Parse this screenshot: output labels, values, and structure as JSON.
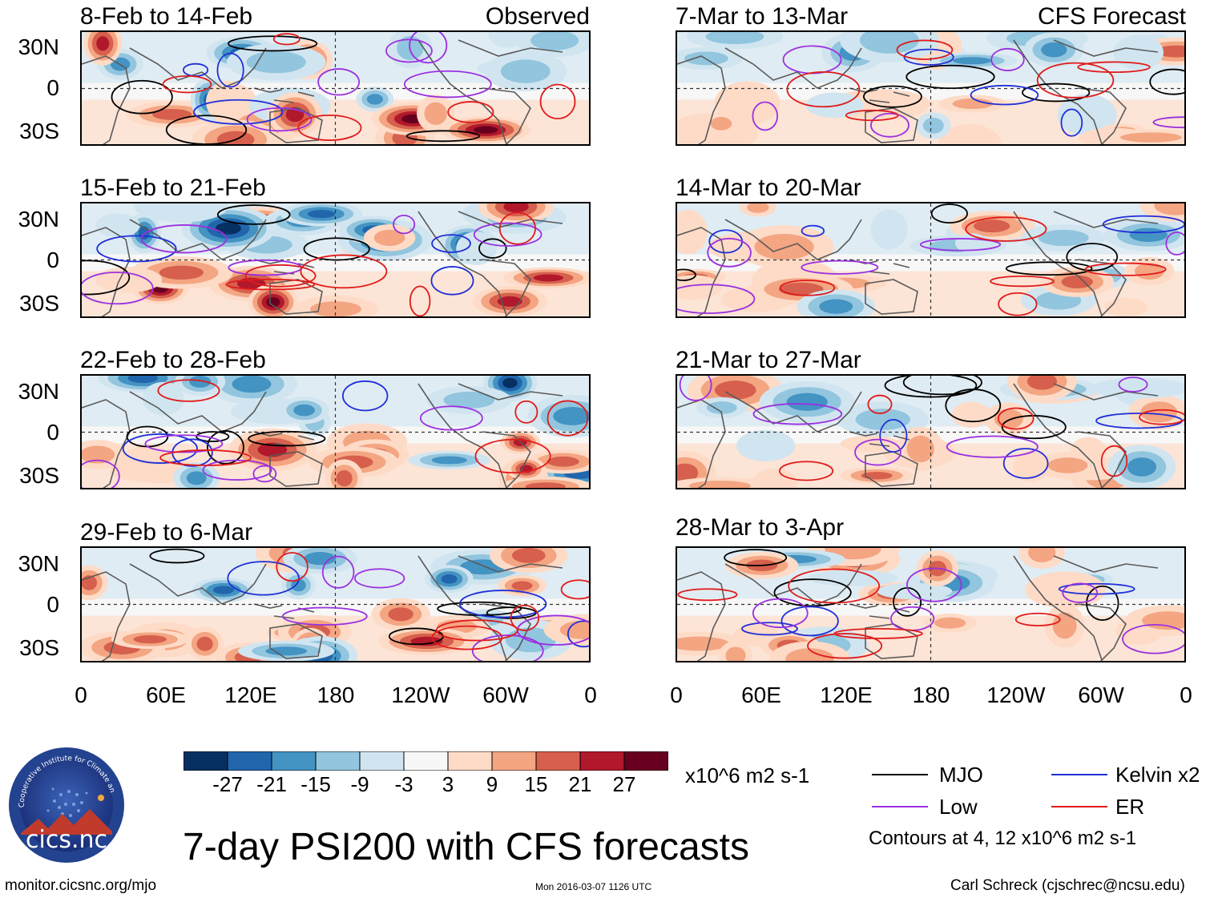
{
  "colors": {
    "scale": [
      "#053061",
      "#2166ac",
      "#4393c3",
      "#92c5de",
      "#d1e5f0",
      "#f7f7f7",
      "#fddbc7",
      "#f4a582",
      "#d6604d",
      "#b2182b",
      "#67001f"
    ],
    "mjo": "#000000",
    "kelvin": "#1f2fd8",
    "low": "#9b30e0",
    "er": "#e01b1b",
    "coast": "#5a5a5a"
  },
  "observed_tag": "Observed",
  "forecast_tag": "CFS Forecast",
  "panels_left": [
    {
      "title": "8-Feb to 14-Feb",
      "seed": 11
    },
    {
      "title": "15-Feb to 21-Feb",
      "seed": 23
    },
    {
      "title": "22-Feb to 28-Feb",
      "seed": 37
    },
    {
      "title": "29-Feb to 6-Mar",
      "seed": 41
    }
  ],
  "panels_right": [
    {
      "title": "7-Mar to 13-Mar",
      "seed": 53
    },
    {
      "title": "14-Mar to 20-Mar",
      "seed": 67
    },
    {
      "title": "21-Mar to 27-Mar",
      "seed": 79
    },
    {
      "title": "28-Mar to 3-Apr",
      "seed": 83
    }
  ],
  "lat_labels": [
    "30N",
    "0",
    "30S"
  ],
  "lon_labels": [
    "0",
    "60E",
    "120E",
    "180",
    "120W",
    "60W",
    "0"
  ],
  "colorbar": {
    "tick_labels": [
      "-27",
      "-21",
      "-15",
      "-9",
      "-3",
      "3",
      "9",
      "15",
      "21",
      "27"
    ],
    "units": "x10^6 m2 s-1"
  },
  "legend": {
    "mjo": "MJO",
    "kelvin": "Kelvin x2",
    "low": "Low",
    "er": "ER",
    "contours_note": "Contours at 4, 12 x10^6 m2 s-1"
  },
  "logo_text": "cics.nc",
  "logo_arc_text": "Cooperative Institute for Climate and Satellites",
  "main_title": "7-day PSI200 with CFS forecasts",
  "footer": {
    "url": "monitor.cicsnc.org/mjo",
    "timestamp": "Mon 2016-03-07 1126 UTC",
    "author": "Carl Schreck (cjschrec@ncsu.edu)"
  }
}
